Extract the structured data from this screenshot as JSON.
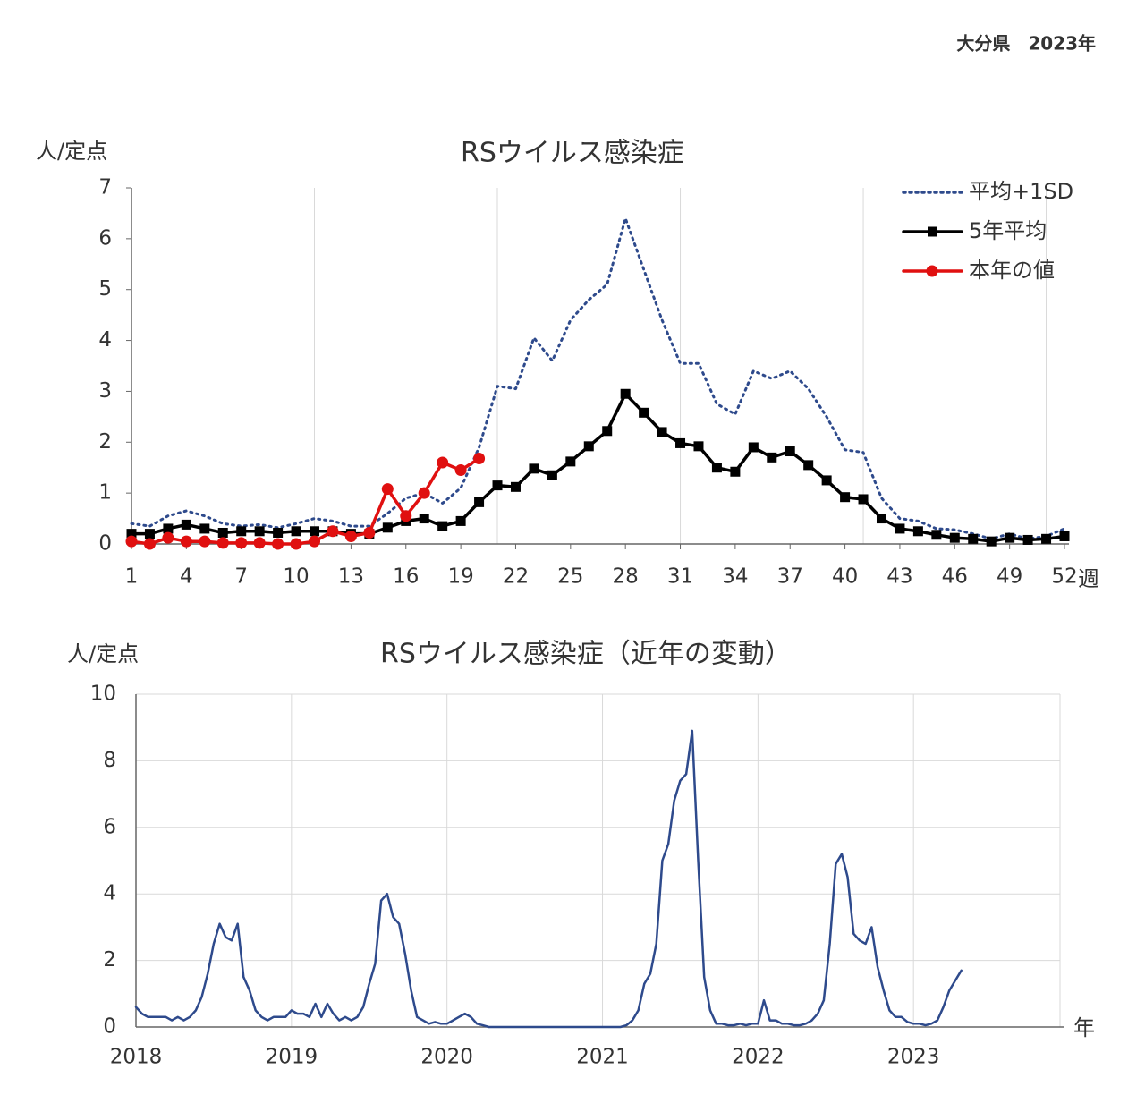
{
  "header": "大分県　2023年",
  "chart_data": [
    {
      "type": "line",
      "title": "RSウイルス感染症",
      "y_label": "人/定点",
      "x_unit_label": "週",
      "x": [
        1,
        2,
        3,
        4,
        5,
        6,
        7,
        8,
        9,
        10,
        11,
        12,
        13,
        14,
        15,
        16,
        17,
        18,
        19,
        20,
        21,
        22,
        23,
        24,
        25,
        26,
        27,
        28,
        29,
        30,
        31,
        32,
        33,
        34,
        35,
        36,
        37,
        38,
        39,
        40,
        41,
        42,
        43,
        44,
        45,
        46,
        47,
        48,
        49,
        50,
        51,
        52
      ],
      "xlim": [
        1,
        52
      ],
      "xticks": [
        1,
        4,
        7,
        10,
        13,
        16,
        19,
        22,
        25,
        28,
        31,
        34,
        37,
        40,
        43,
        46,
        49,
        52
      ],
      "x_gridlines": [
        11,
        21,
        31,
        41,
        51
      ],
      "ylim": [
        0,
        7
      ],
      "yticks": [
        0,
        1,
        2,
        3,
        4,
        5,
        6,
        7
      ],
      "legend": "upper right",
      "series": [
        {
          "name": "平均+1SD",
          "color": "#2e4a8c",
          "style": "dotted",
          "marker": "none",
          "values": [
            0.4,
            0.35,
            0.55,
            0.65,
            0.55,
            0.4,
            0.35,
            0.38,
            0.32,
            0.4,
            0.5,
            0.45,
            0.35,
            0.35,
            0.6,
            0.9,
            1.0,
            0.8,
            1.1,
            1.9,
            3.1,
            3.05,
            4.05,
            3.6,
            4.4,
            4.8,
            5.1,
            6.4,
            5.4,
            4.4,
            3.55,
            3.55,
            2.75,
            2.55,
            3.4,
            3.25,
            3.4,
            3.05,
            2.5,
            1.85,
            1.8,
            0.9,
            0.5,
            0.45,
            0.3,
            0.28,
            0.2,
            0.1,
            0.2,
            0.1,
            0.15,
            0.3
          ]
        },
        {
          "name": "5年平均",
          "color": "#000000",
          "style": "solid",
          "marker": "square",
          "values": [
            0.2,
            0.2,
            0.3,
            0.38,
            0.3,
            0.22,
            0.25,
            0.25,
            0.22,
            0.25,
            0.25,
            0.25,
            0.2,
            0.2,
            0.32,
            0.45,
            0.5,
            0.35,
            0.45,
            0.82,
            1.15,
            1.12,
            1.48,
            1.35,
            1.62,
            1.92,
            2.22,
            2.95,
            2.58,
            2.2,
            1.98,
            1.92,
            1.5,
            1.42,
            1.9,
            1.7,
            1.82,
            1.55,
            1.25,
            0.92,
            0.88,
            0.5,
            0.3,
            0.25,
            0.18,
            0.12,
            0.1,
            0.05,
            0.12,
            0.08,
            0.1,
            0.15
          ]
        },
        {
          "name": "本年の値",
          "color": "#e01010",
          "style": "solid",
          "marker": "circle",
          "values": [
            0.05,
            0,
            0.12,
            0.05,
            0.05,
            0.02,
            0.02,
            0.02,
            0,
            0,
            0.05,
            0.25,
            0.15,
            0.22,
            1.08,
            0.55,
            1.0,
            1.6,
            1.45,
            1.68,
            null,
            null,
            null,
            null,
            null,
            null,
            null,
            null,
            null,
            null,
            null,
            null,
            null,
            null,
            null,
            null,
            null,
            null,
            null,
            null,
            null,
            null,
            null,
            null,
            null,
            null,
            null,
            null,
            null,
            null,
            null,
            null
          ]
        }
      ]
    },
    {
      "type": "line",
      "title": "RSウイルス感染症（近年の変動）",
      "y_label": "人/定点",
      "x_unit_label": "年",
      "x": [
        0,
        2,
        4,
        6,
        8,
        10,
        12,
        14,
        16,
        18,
        20,
        22,
        24,
        26,
        28,
        30,
        32,
        34,
        36,
        38,
        40,
        42,
        44,
        46,
        48,
        50,
        52,
        54,
        56,
        58,
        60,
        62,
        64,
        66,
        68,
        70,
        72,
        74,
        76,
        78,
        80,
        82,
        84,
        86,
        88,
        90,
        92,
        94,
        96,
        98,
        100,
        102,
        104,
        106,
        108,
        110,
        112,
        114,
        116,
        118,
        120,
        122,
        124,
        126,
        128,
        130,
        132,
        134,
        136,
        138,
        140,
        142,
        144,
        146,
        148,
        150,
        152,
        154,
        156,
        158,
        160,
        162,
        164,
        166,
        168,
        170,
        172,
        174,
        176,
        178,
        180,
        182,
        184,
        186,
        188,
        190,
        192,
        194,
        196,
        198,
        200,
        202,
        204,
        206,
        208,
        210,
        212,
        214,
        216,
        218,
        220,
        222,
        224,
        226,
        228,
        230,
        232,
        234,
        236,
        238,
        240,
        242,
        244,
        246,
        248,
        250,
        252,
        254,
        256,
        258,
        260,
        262,
        264,
        266,
        268,
        270,
        272,
        274,
        276
      ],
      "xlim": [
        0,
        309
      ],
      "xticks": [
        {
          "value": 0,
          "label": "2018"
        },
        {
          "value": 52,
          "label": "2019"
        },
        {
          "value": 104,
          "label": "2020"
        },
        {
          "value": 156,
          "label": "2021"
        },
        {
          "value": 208,
          "label": "2022"
        },
        {
          "value": 260,
          "label": "2023"
        }
      ],
      "ylim": [
        0,
        10
      ],
      "yticks": [
        0,
        2,
        4,
        6,
        8,
        10
      ],
      "grid": true,
      "series": [
        {
          "color": "#2e4a8c",
          "style": "solid",
          "marker": "none",
          "values": [
            0.6,
            0.4,
            0.3,
            0.3,
            0.3,
            0.3,
            0.2,
            0.3,
            0.2,
            0.3,
            0.5,
            0.9,
            1.6,
            2.5,
            3.1,
            2.7,
            2.6,
            3.1,
            1.5,
            1.1,
            0.5,
            0.3,
            0.2,
            0.3,
            0.3,
            0.3,
            0.5,
            0.4,
            0.4,
            0.3,
            0.7,
            0.3,
            0.7,
            0.4,
            0.2,
            0.3,
            0.2,
            0.3,
            0.6,
            1.3,
            1.9,
            3.8,
            4.0,
            3.3,
            3.1,
            2.2,
            1.1,
            0.3,
            0.2,
            0.1,
            0.15,
            0.1,
            0.1,
            0.2,
            0.3,
            0.4,
            0.3,
            0.1,
            0.05,
            0,
            0,
            0,
            0,
            0,
            0,
            0,
            0,
            0,
            0,
            0,
            0,
            0,
            0,
            0,
            0,
            0,
            0,
            0,
            0,
            0,
            0,
            0,
            0.05,
            0.2,
            0.5,
            1.3,
            1.6,
            2.5,
            5.0,
            5.5,
            6.8,
            7.4,
            7.6,
            8.9,
            5.0,
            1.5,
            0.5,
            0.1,
            0.1,
            0.05,
            0.05,
            0.1,
            0.05,
            0.1,
            0.1,
            0.8,
            0.2,
            0.2,
            0.1,
            0.1,
            0.05,
            0.05,
            0.1,
            0.2,
            0.4,
            0.8,
            2.5,
            4.9,
            5.2,
            4.5,
            2.8,
            2.6,
            2.5,
            3.0,
            1.8,
            1.1,
            0.5,
            0.3,
            0.3,
            0.15,
            0.1,
            0.1,
            0.05,
            0.1,
            0.2,
            0.6,
            1.1,
            1.4,
            1.7
          ]
        }
      ]
    }
  ]
}
